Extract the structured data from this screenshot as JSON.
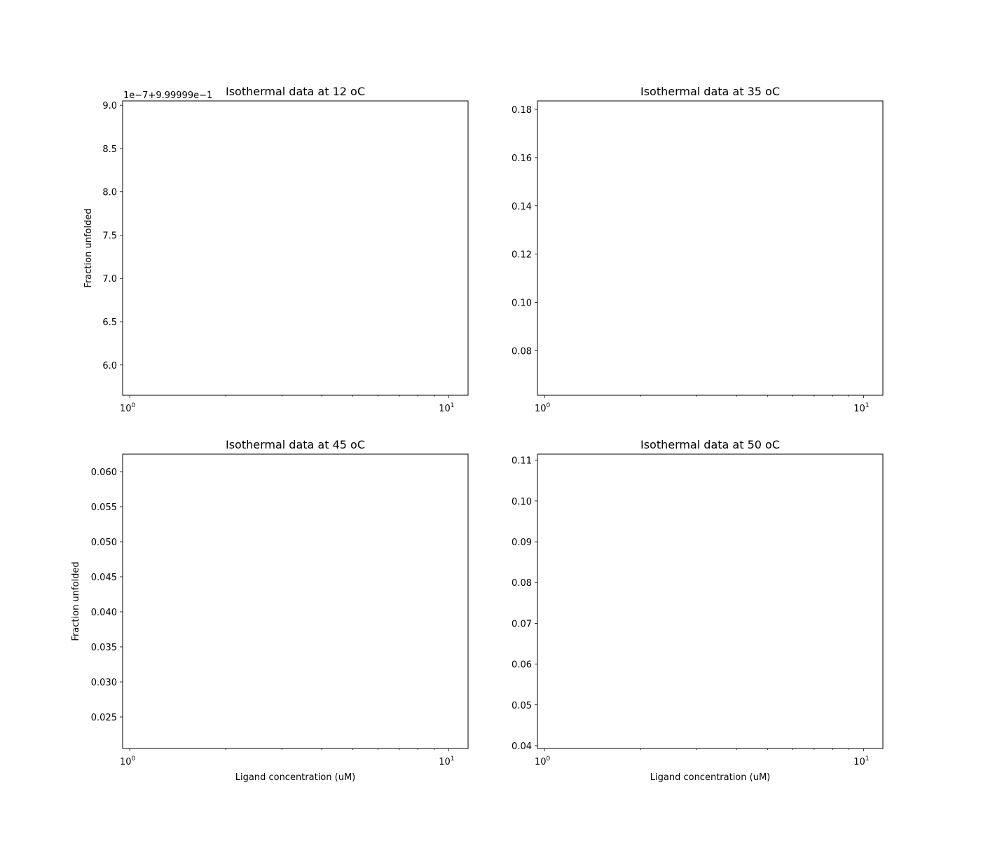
{
  "chart_data": [
    {
      "type": "scatter",
      "title": "Isothermal data at 12 oC",
      "xlabel": "",
      "ylabel": "Fraction unfolded",
      "xscale": "log",
      "xlim": [
        0.95,
        11.5
      ],
      "ylim": [
        5.65,
        9.05
      ],
      "x_major_ticks": [
        1,
        10
      ],
      "x_major_labels": [
        {
          "base": "10",
          "exp": "0"
        },
        {
          "base": "10",
          "exp": "1"
        }
      ],
      "yticks": [
        6.0,
        6.5,
        7.0,
        7.5,
        8.0,
        8.5,
        9.0
      ],
      "ytick_labels": [
        "6.0",
        "6.5",
        "7.0",
        "7.5",
        "8.0",
        "8.5",
        "9.0"
      ],
      "offset_text": "1e−7+9.99999e−1",
      "series": []
    },
    {
      "type": "scatter",
      "title": "Isothermal data at 35 oC",
      "xlabel": "",
      "ylabel": "",
      "xscale": "log",
      "xlim": [
        0.95,
        11.5
      ],
      "ylim": [
        0.0615,
        0.1835
      ],
      "x_major_ticks": [
        1,
        10
      ],
      "x_major_labels": [
        {
          "base": "10",
          "exp": "0"
        },
        {
          "base": "10",
          "exp": "1"
        }
      ],
      "yticks": [
        0.08,
        0.1,
        0.12,
        0.14,
        0.16,
        0.18
      ],
      "ytick_labels": [
        "0.08",
        "0.10",
        "0.12",
        "0.14",
        "0.16",
        "0.18"
      ],
      "offset_text": "",
      "series": []
    },
    {
      "type": "scatter",
      "title": "Isothermal data at 45 oC",
      "xlabel": "Ligand concentration (uM)",
      "ylabel": "Fraction unfolded",
      "xscale": "log",
      "xlim": [
        0.95,
        11.5
      ],
      "ylim": [
        0.0205,
        0.0625
      ],
      "x_major_ticks": [
        1,
        10
      ],
      "x_major_labels": [
        {
          "base": "10",
          "exp": "0"
        },
        {
          "base": "10",
          "exp": "1"
        }
      ],
      "yticks": [
        0.025,
        0.03,
        0.035,
        0.04,
        0.045,
        0.05,
        0.055,
        0.06
      ],
      "ytick_labels": [
        "0.025",
        "0.030",
        "0.035",
        "0.040",
        "0.045",
        "0.050",
        "0.055",
        "0.060"
      ],
      "offset_text": "",
      "series": []
    },
    {
      "type": "scatter",
      "title": "Isothermal data at 50 oC",
      "xlabel": "Ligand concentration (uM)",
      "ylabel": "",
      "xscale": "log",
      "xlim": [
        0.95,
        11.5
      ],
      "ylim": [
        0.0393,
        0.1115
      ],
      "x_major_ticks": [
        1,
        10
      ],
      "x_major_labels": [
        {
          "base": "10",
          "exp": "0"
        },
        {
          "base": "10",
          "exp": "1"
        }
      ],
      "yticks": [
        0.04,
        0.05,
        0.06,
        0.07,
        0.08,
        0.09,
        0.1,
        0.11
      ],
      "ytick_labels": [
        "0.04",
        "0.05",
        "0.06",
        "0.07",
        "0.08",
        "0.09",
        "0.10",
        "0.11"
      ],
      "offset_text": "",
      "series": []
    }
  ]
}
